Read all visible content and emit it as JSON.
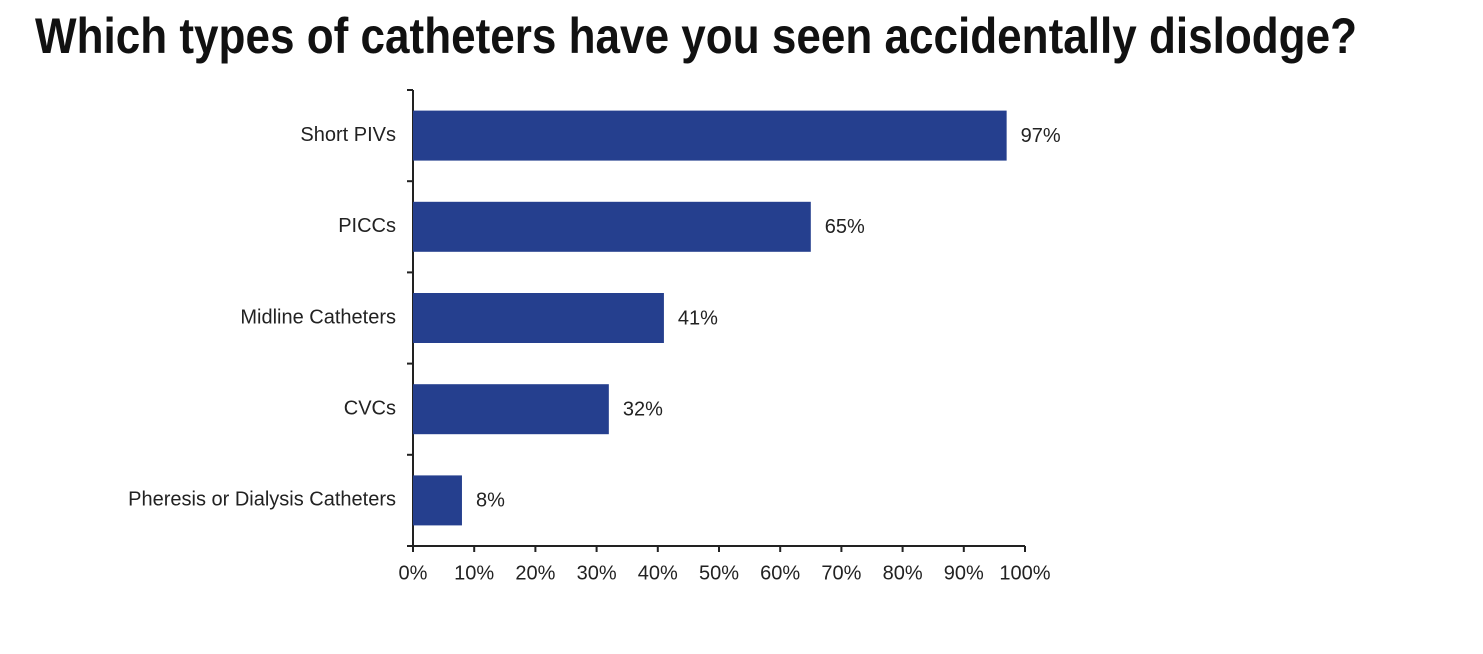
{
  "chart_data": {
    "type": "bar",
    "orientation": "horizontal",
    "title": "Which types of catheters have you seen accidentally dislodge?",
    "categories": [
      "Short PIVs",
      "PICCs",
      "Midline Catheters",
      "CVCs",
      "Pheresis or Dialysis Catheters"
    ],
    "values": [
      97,
      65,
      41,
      32,
      8
    ],
    "value_labels": [
      "97%",
      "65%",
      "41%",
      "32%",
      "8%"
    ],
    "color": "#253f8e",
    "xlim": [
      0,
      100
    ],
    "xticks": [
      {
        "value": 0,
        "label": "0%"
      },
      {
        "value": 10,
        "label": "10%"
      },
      {
        "value": 20,
        "label": "20%"
      },
      {
        "value": 30,
        "label": "30%"
      },
      {
        "value": 40,
        "label": "40%"
      },
      {
        "value": 50,
        "label": "50%"
      },
      {
        "value": 60,
        "label": "60%"
      },
      {
        "value": 70,
        "label": "70%"
      },
      {
        "value": 80,
        "label": "80%"
      },
      {
        "value": 90,
        "label": "90%"
      },
      {
        "value": 100,
        "label": "100%"
      }
    ],
    "grid": false
  }
}
